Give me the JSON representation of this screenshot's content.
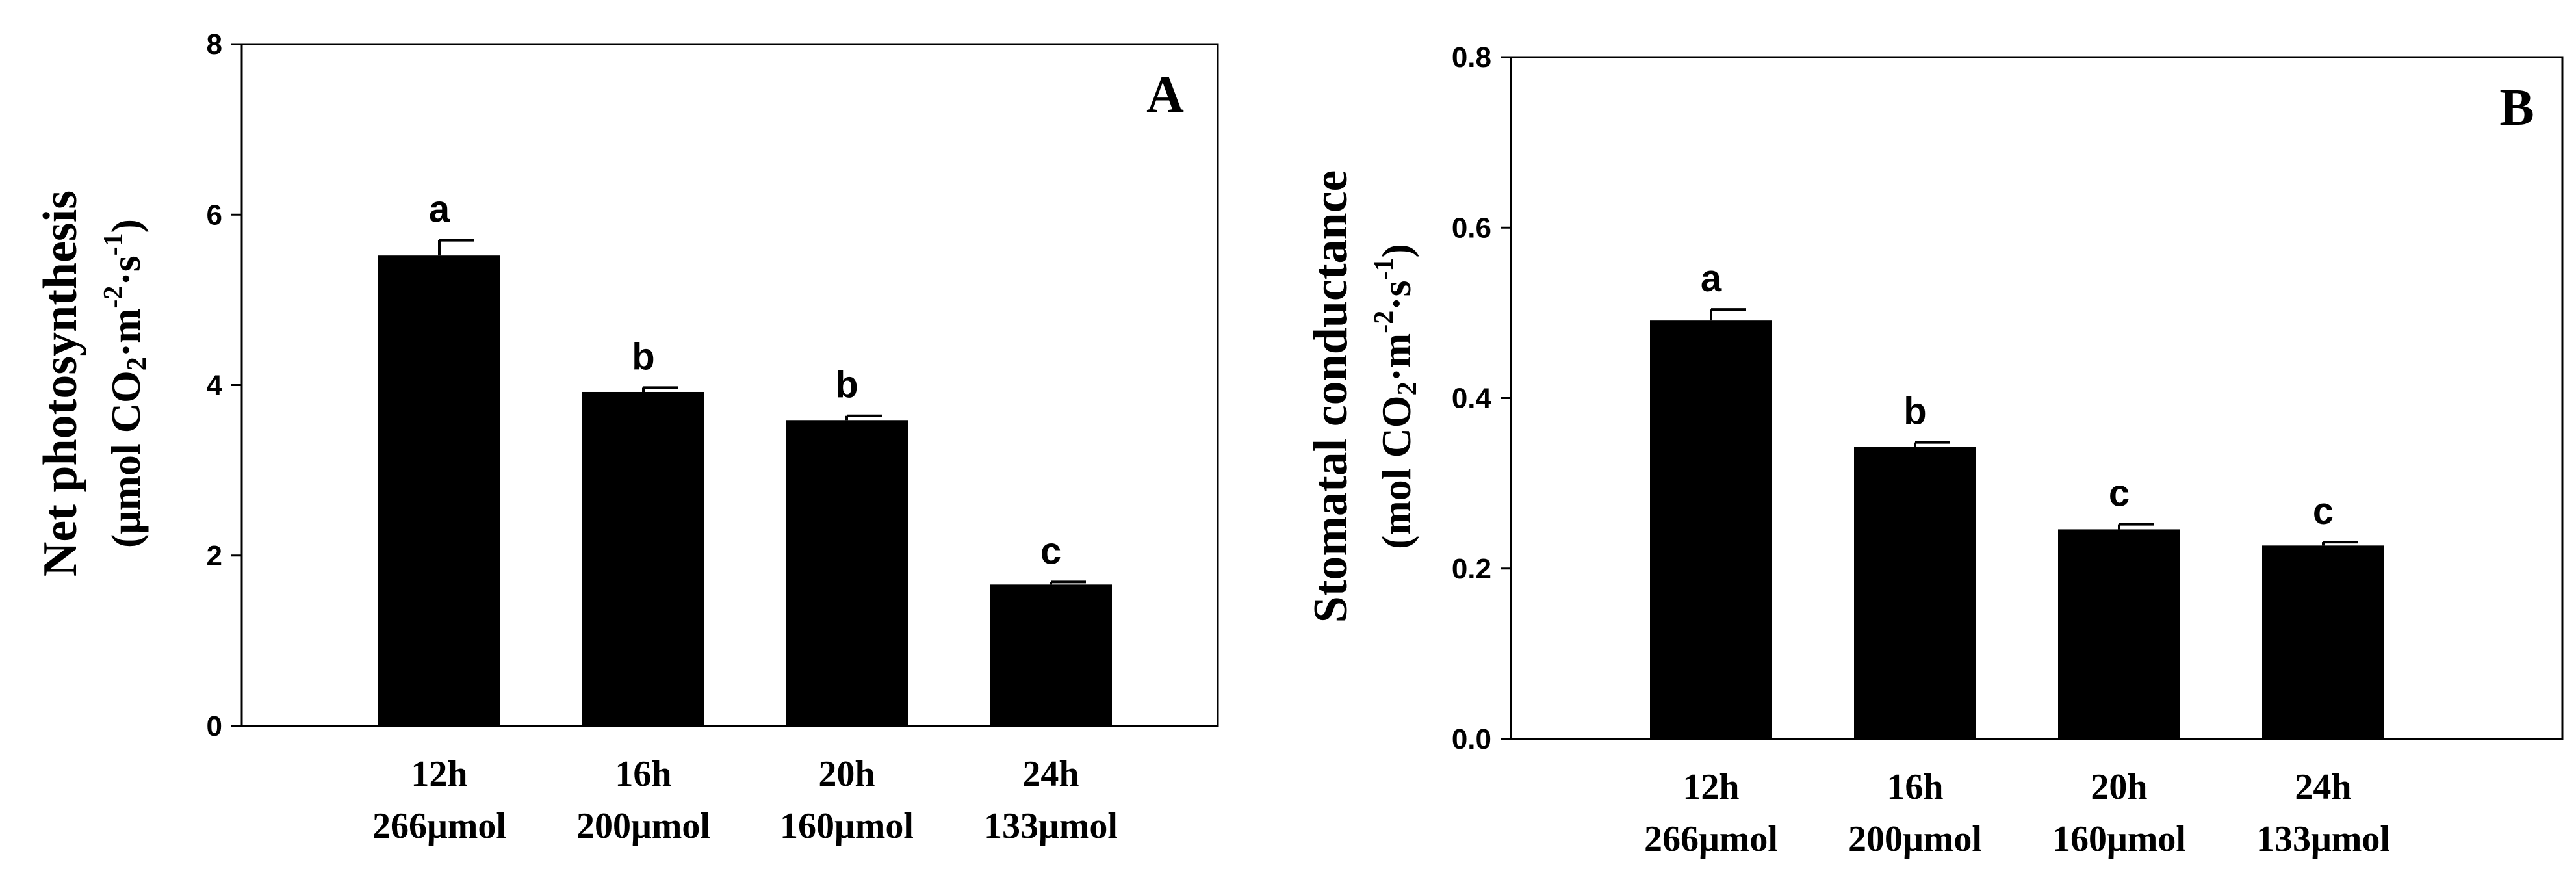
{
  "chart_data": [
    {
      "type": "bar",
      "panel": "A",
      "ylabel": "Net photosynthesis",
      "ylabel_unit": {
        "prefix": "(μmol CO",
        "sub": "2",
        "mid1": "·m",
        "sup1": "-2",
        "mid2": "·s",
        "sup2": "-1",
        "suffix": ")"
      },
      "ylim": [
        0,
        8
      ],
      "yticks": [
        0,
        2,
        4,
        6,
        8
      ],
      "ytick_labels": [
        "0",
        "2",
        "4",
        "6",
        "8"
      ],
      "categories": [
        {
          "line1": "12h",
          "line2": "266μmol"
        },
        {
          "line1": "16h",
          "line2": "200μmol"
        },
        {
          "line1": "20h",
          "line2": "160μmol"
        },
        {
          "line1": "24h",
          "line2": "133μmol"
        }
      ],
      "values": [
        5.52,
        3.92,
        3.59,
        1.66
      ],
      "errors": [
        0.18,
        0.05,
        0.05,
        0.03
      ],
      "significance": [
        "a",
        "b",
        "b",
        "c"
      ]
    },
    {
      "type": "bar",
      "panel": "B",
      "ylabel": "Stomatal conductance",
      "ylabel_unit": {
        "prefix": "(mol CO",
        "sub": "2",
        "mid1": "·m",
        "sup1": "-2",
        "mid2": "·s",
        "sup2": "-1",
        "suffix": ")"
      },
      "ylim": [
        0,
        0.8
      ],
      "yticks": [
        0.0,
        0.2,
        0.4,
        0.6,
        0.8
      ],
      "ytick_labels": [
        "0.0",
        "0.2",
        "0.4",
        "0.6",
        "0.8"
      ],
      "categories": [
        {
          "line1": "12h",
          "line2": "266μmol"
        },
        {
          "line1": "16h",
          "line2": "200μmol"
        },
        {
          "line1": "20h",
          "line2": "160μmol"
        },
        {
          "line1": "24h",
          "line2": "133μmol"
        }
      ],
      "values": [
        0.491,
        0.343,
        0.246,
        0.227
      ],
      "errors": [
        0.013,
        0.005,
        0.006,
        0.004
      ],
      "significance": [
        "a",
        "b",
        "c",
        "c"
      ]
    }
  ]
}
